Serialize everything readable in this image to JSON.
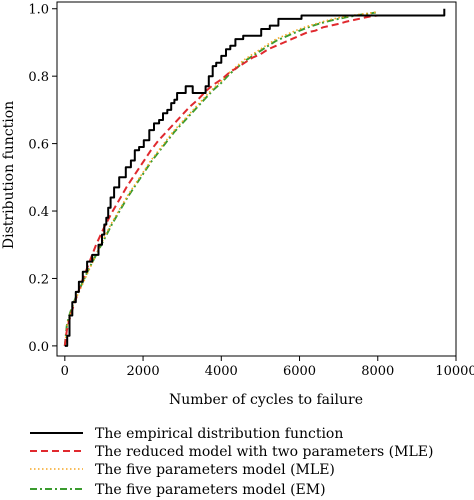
{
  "chart_data": {
    "type": "line",
    "title": "",
    "xlabel": "Number of cycles to failure",
    "ylabel": "Distribution function",
    "xlim": [
      -200,
      10000
    ],
    "ylim": [
      -0.03,
      1.02
    ],
    "xticks": [
      0,
      2000,
      4000,
      6000,
      8000,
      10000
    ],
    "yticks": [
      0.0,
      0.2,
      0.4,
      0.6,
      0.8,
      1.0
    ],
    "xtick_labels": [
      "0",
      "2000",
      "4000",
      "6000",
      "8000",
      "10000"
    ],
    "ytick_labels": [
      "0.0",
      "0.2",
      "0.4",
      "0.6",
      "0.8",
      "1.0"
    ],
    "legend_position": "below",
    "series": [
      {
        "name": "The empirical distribution function",
        "style": "solid",
        "color": "#000000",
        "step": true,
        "x": [
          0,
          60,
          120,
          190,
          280,
          360,
          460,
          570,
          700,
          860,
          950,
          1010,
          1060,
          1110,
          1170,
          1260,
          1390,
          1560,
          1690,
          1790,
          1900,
          2020,
          2160,
          2280,
          2410,
          2510,
          2620,
          2720,
          2800,
          2870,
          2960,
          3090,
          3160,
          3270,
          3390,
          3520,
          3600,
          3680,
          3780,
          3870,
          4000,
          4120,
          4230,
          4360,
          4560,
          4750,
          5020,
          5240,
          5460,
          5560,
          6050,
          7950,
          9700
        ],
        "y": [
          0.0,
          0.03,
          0.09,
          0.13,
          0.16,
          0.19,
          0.22,
          0.25,
          0.27,
          0.3,
          0.33,
          0.36,
          0.38,
          0.41,
          0.44,
          0.47,
          0.5,
          0.53,
          0.55,
          0.58,
          0.59,
          0.61,
          0.64,
          0.66,
          0.67,
          0.69,
          0.7,
          0.72,
          0.73,
          0.75,
          0.75,
          0.77,
          0.77,
          0.75,
          0.75,
          0.75,
          0.77,
          0.8,
          0.83,
          0.84,
          0.86,
          0.88,
          0.89,
          0.91,
          0.92,
          0.92,
          0.94,
          0.95,
          0.97,
          0.97,
          0.98,
          0.98,
          1.0
        ]
      },
      {
        "name": "The reduced model with two parameters (MLE)",
        "style": "dashed",
        "color": "#e0292e",
        "x": [
          0,
          50,
          100,
          200,
          300,
          400,
          500,
          600,
          800,
          1000,
          1200,
          1400,
          1600,
          1800,
          2000,
          2200,
          2400,
          2600,
          2800,
          3000,
          3200,
          3400,
          3600,
          3800,
          4000,
          4200,
          4400,
          4600,
          4800,
          5000,
          5200,
          5400,
          5600,
          5800,
          6000,
          6200,
          6400,
          6600,
          6800,
          7000,
          7200,
          7400,
          7600,
          7800,
          8000
        ],
        "y": [
          0.0,
          0.045,
          0.07,
          0.11,
          0.145,
          0.18,
          0.21,
          0.24,
          0.3,
          0.35,
          0.395,
          0.435,
          0.475,
          0.51,
          0.545,
          0.58,
          0.61,
          0.635,
          0.66,
          0.685,
          0.71,
          0.73,
          0.755,
          0.775,
          0.79,
          0.81,
          0.825,
          0.84,
          0.855,
          0.865,
          0.88,
          0.89,
          0.9,
          0.91,
          0.92,
          0.93,
          0.935,
          0.945,
          0.95,
          0.955,
          0.962,
          0.967,
          0.972,
          0.977,
          0.98
        ]
      },
      {
        "name": "The five parameters model (MLE)",
        "style": "dotted",
        "color": "#f5a623",
        "x": [
          0,
          50,
          100,
          200,
          300,
          400,
          500,
          600,
          800,
          1000,
          1200,
          1400,
          1600,
          1800,
          2000,
          2200,
          2400,
          2600,
          2800,
          3000,
          3200,
          3400,
          3600,
          3800,
          4000,
          4200,
          4400,
          4600,
          4800,
          5000,
          5200,
          5400,
          5600,
          5800,
          6000,
          6200,
          6400,
          6600,
          6800,
          7000,
          7200,
          7400,
          7600,
          7800,
          7950
        ],
        "y": [
          0.0,
          0.055,
          0.08,
          0.115,
          0.145,
          0.17,
          0.195,
          0.22,
          0.27,
          0.32,
          0.365,
          0.405,
          0.445,
          0.48,
          0.515,
          0.55,
          0.58,
          0.61,
          0.64,
          0.665,
          0.69,
          0.715,
          0.74,
          0.765,
          0.785,
          0.81,
          0.83,
          0.85,
          0.865,
          0.88,
          0.895,
          0.91,
          0.92,
          0.93,
          0.94,
          0.948,
          0.955,
          0.962,
          0.968,
          0.973,
          0.977,
          0.981,
          0.984,
          0.987,
          0.99
        ]
      },
      {
        "name": "The five parameters model (EM)",
        "style": "dashdot",
        "color": "#3a9b2e",
        "x": [
          0,
          50,
          100,
          200,
          300,
          400,
          500,
          600,
          800,
          1000,
          1200,
          1400,
          1600,
          1800,
          2000,
          2200,
          2400,
          2600,
          2800,
          3000,
          3200,
          3400,
          3600,
          3800,
          4000,
          4200,
          4400,
          4600,
          4800,
          5000,
          5200,
          5400,
          5600,
          5800,
          6000,
          6200,
          6400,
          6600,
          6800,
          7000,
          7200,
          7400,
          7600,
          7800,
          7950
        ],
        "y": [
          0.0,
          0.06,
          0.085,
          0.12,
          0.15,
          0.175,
          0.2,
          0.225,
          0.27,
          0.315,
          0.36,
          0.4,
          0.44,
          0.475,
          0.51,
          0.545,
          0.575,
          0.605,
          0.635,
          0.66,
          0.685,
          0.71,
          0.735,
          0.76,
          0.78,
          0.805,
          0.825,
          0.845,
          0.86,
          0.875,
          0.89,
          0.905,
          0.915,
          0.925,
          0.935,
          0.944,
          0.952,
          0.959,
          0.965,
          0.97,
          0.975,
          0.979,
          0.983,
          0.986,
          0.989
        ]
      }
    ]
  }
}
